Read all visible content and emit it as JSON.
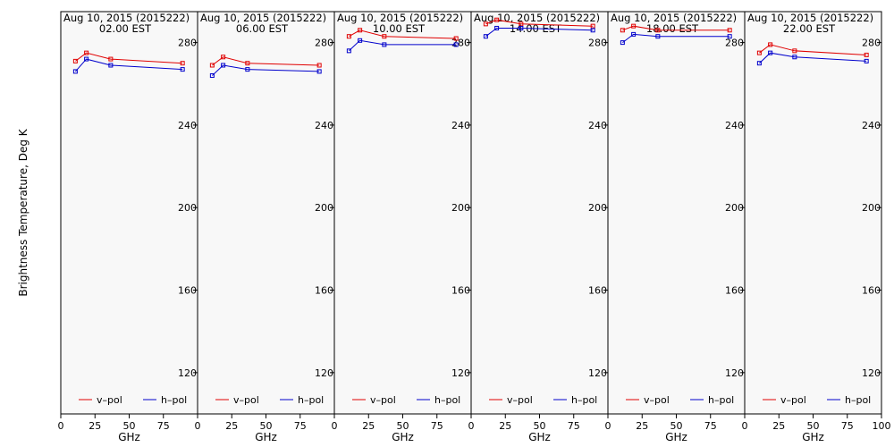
{
  "chart_data": {
    "type": "line",
    "ylabel": "Brightness Temperature, Deg K",
    "xlabel": "GHz",
    "ylim": [
      100,
      295
    ],
    "xlim": [
      0,
      100
    ],
    "yticks": [
      120,
      160,
      200,
      240,
      280
    ],
    "xticks": [
      0,
      25,
      50,
      75,
      100
    ],
    "series_colors": {
      "v-pol": "#e00000",
      "h-pol": "#0000cc"
    },
    "legend_labels": [
      "v–pol",
      "h–pol"
    ],
    "panels": [
      {
        "title": "Aug 10, 2015 (2015222)",
        "subtitle": "02.00 EST",
        "x": [
          10.7,
          18.7,
          36.5,
          89.0
        ],
        "series": [
          {
            "name": "v-pol",
            "values": [
              271,
              275,
              272,
              270
            ]
          },
          {
            "name": "h-pol",
            "values": [
              266,
              272,
              269,
              267
            ]
          }
        ]
      },
      {
        "title": "Aug 10, 2015 (2015222)",
        "subtitle": "06.00 EST",
        "x": [
          10.7,
          18.7,
          36.5,
          89.0
        ],
        "series": [
          {
            "name": "v-pol",
            "values": [
              269,
              273,
              270,
              269
            ]
          },
          {
            "name": "h-pol",
            "values": [
              264,
              269,
              267,
              266
            ]
          }
        ]
      },
      {
        "title": "Aug 10, 2015 (2015222)",
        "subtitle": "10.00 EST",
        "x": [
          10.7,
          18.7,
          36.5,
          89.0
        ],
        "series": [
          {
            "name": "v-pol",
            "values": [
              283,
              286,
              283,
              282
            ]
          },
          {
            "name": "h-pol",
            "values": [
              276,
              281,
              279,
              279
            ]
          }
        ]
      },
      {
        "title": "Aug 10, 2015 (2015222)",
        "subtitle": "14.00 EST",
        "x": [
          10.7,
          18.7,
          36.5,
          89.0
        ],
        "series": [
          {
            "name": "v-pol",
            "values": [
              289,
              291,
              289,
              288
            ]
          },
          {
            "name": "h-pol",
            "values": [
              283,
              287,
              287,
              286
            ]
          }
        ]
      },
      {
        "title": "Aug 10, 2015 (2015222)",
        "subtitle": "18.00 EST",
        "x": [
          10.7,
          18.7,
          36.5,
          89.0
        ],
        "series": [
          {
            "name": "v-pol",
            "values": [
              286,
              288,
              286,
              286
            ]
          },
          {
            "name": "h-pol",
            "values": [
              280,
              284,
              283,
              283
            ]
          }
        ]
      },
      {
        "title": "Aug 10, 2015 (2015222)",
        "subtitle": "22.00 EST",
        "x": [
          10.7,
          18.7,
          36.5,
          89.0
        ],
        "series": [
          {
            "name": "v-pol",
            "values": [
              275,
              279,
              276,
              274
            ]
          },
          {
            "name": "h-pol",
            "values": [
              270,
              275,
              273,
              271
            ]
          }
        ]
      }
    ]
  }
}
